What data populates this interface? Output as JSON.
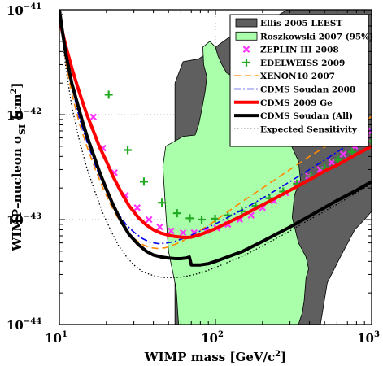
{
  "chart_data": {
    "type": "line",
    "x_scale": "log",
    "y_scale": "log",
    "xlim": [
      10,
      1000
    ],
    "ylim": [
      1e-44,
      1e-41
    ],
    "xlabel_main": "WIMP mass [GeV/c",
    "xlabel_sup": "2",
    "xlabel_end": "]",
    "ylabel_main": "WIMP–nucleon σ",
    "ylabel_sub": "SI",
    "ylabel_mid": " [cm",
    "ylabel_sup": "2",
    "ylabel_end": "]",
    "x_ticks": [
      {
        "value": 10,
        "base": "10",
        "exp": "1"
      },
      {
        "value": 100,
        "base": "10",
        "exp": "2"
      },
      {
        "value": 1000,
        "base": "10",
        "exp": "3"
      }
    ],
    "y_ticks": [
      {
        "value": 1e-44,
        "base": "10",
        "exp": "−44"
      },
      {
        "value": 1e-43,
        "base": "10",
        "exp": "−43"
      },
      {
        "value": 1e-42,
        "base": "10",
        "exp": "−42"
      },
      {
        "value": 1e-41,
        "base": "10",
        "exp": "−41"
      }
    ],
    "grid": "dotted at decades",
    "legend_position": "top-right",
    "regions": [
      {
        "name": "Ellis 2005 LEEST",
        "fill": "#5f5f5f",
        "stroke": "#000000",
        "points": [
          [
            55,
            1e-44
          ],
          [
            55,
            2e-42
          ],
          [
            62,
            3.2e-42
          ],
          [
            78,
            3.4e-42
          ],
          [
            96,
            4.2e-42
          ],
          [
            125,
            5.6e-42
          ],
          [
            165,
            6.6e-42
          ],
          [
            225,
            8.1e-42
          ],
          [
            290,
            1e-41
          ],
          [
            1000,
            1e-41
          ],
          [
            1000,
            1.2e-43
          ],
          [
            900,
            1e-43
          ],
          [
            780,
            8e-44
          ],
          [
            620,
            4.2e-44
          ],
          [
            520,
            2.5e-44
          ],
          [
            470,
            1e-44
          ]
        ]
      },
      {
        "name": "Roszkowski 2007 (95%)",
        "fill": "#aaffaa",
        "stroke": "#000000",
        "points": [
          [
            58,
            1e-44
          ],
          [
            56,
            2.2e-44
          ],
          [
            50,
            5e-44
          ],
          [
            48,
            1.2e-43
          ],
          [
            46,
            3.2e-43
          ],
          [
            48,
            5e-43
          ],
          [
            62,
            6.2e-43
          ],
          [
            74,
            6.4e-43
          ],
          [
            78,
            8e-43
          ],
          [
            82,
            1.15e-42
          ],
          [
            86,
            1.7e-42
          ],
          [
            88,
            2.3e-42
          ],
          [
            84,
            3e-42
          ],
          [
            83,
            4.4e-42
          ],
          [
            92,
            5e-42
          ],
          [
            100,
            4.4e-42
          ],
          [
            104,
            3.6e-42
          ],
          [
            110,
            3e-42
          ],
          [
            118,
            2.5e-42
          ],
          [
            130,
            2.3e-42
          ],
          [
            145,
            1.8e-42
          ],
          [
            160,
            1.4e-42
          ],
          [
            176,
            1.15e-42
          ],
          [
            196,
            9.5e-43
          ],
          [
            220,
            8.5e-43
          ],
          [
            252,
            7.8e-43
          ],
          [
            300,
            5.4e-43
          ],
          [
            340,
            3.6e-43
          ],
          [
            350,
            2.4e-43
          ],
          [
            320,
            1.7e-43
          ],
          [
            310,
            1.05e-43
          ],
          [
            340,
            6e-44
          ],
          [
            380,
            4.4e-44
          ],
          [
            395,
            3.4e-44
          ],
          [
            380,
            2.8e-44
          ],
          [
            370,
            1.7e-44
          ],
          [
            360,
            1.3e-44
          ],
          [
            340,
            1e-44
          ]
        ]
      }
    ],
    "series": [
      {
        "name": "ZEPLIN III 2008",
        "kind": "markers",
        "marker": "x",
        "color": "#ff33ff",
        "x": [
          16.5,
          19,
          22.5,
          26.5,
          31.5,
          37.5,
          44,
          52,
          62,
          73,
          87,
          102,
          120,
          143,
          169,
          200,
          237,
          281,
          333,
          395,
          468,
          555,
          658,
          780,
          925,
          1000
        ],
        "y": [
          9.5e-43,
          4.8e-43,
          2.8e-43,
          1.7e-43,
          1.3e-43,
          1e-43,
          8.5e-44,
          7.8e-44,
          7.5e-44,
          7.5e-44,
          7.8e-44,
          8.3e-44,
          9e-44,
          1e-43,
          1.1e-43,
          1.3e-43,
          1.5e-43,
          1.8e-43,
          2.2e-43,
          2.6e-43,
          3e-43,
          3.5e-43,
          4.2e-43,
          5e-43,
          6e-43,
          7e-43
        ]
      },
      {
        "name": "EDELWEISS 2009",
        "kind": "markers",
        "marker": "+",
        "color": "#22aa22",
        "x": [
          20.7,
          27.4,
          34.8,
          45.4,
          56.8,
          68.5,
          81.6,
          99.5,
          120,
          147.3,
          181,
          221.8,
          271.5,
          332.8,
          409.6,
          498.7,
          610.5,
          748.9,
          1000
        ],
        "y": [
          1.55e-42,
          4.6e-43,
          2.3e-43,
          1.45e-43,
          1.15e-43,
          1.03e-43,
          1e-43,
          1.02e-43,
          1.1e-43,
          1.2e-43,
          1.35e-43,
          1.6e-43,
          1.85e-43,
          2.2e-43,
          2.6e-43,
          3.1e-43,
          3.7e-43,
          4.4e-43,
          5.6e-43
        ]
      },
      {
        "name": "XENON10 2007",
        "kind": "line",
        "color": "#ff8800",
        "dash": "8,5",
        "width": 1.6,
        "x": [
          10,
          11,
          12,
          13.5,
          15,
          17,
          19,
          21.5,
          24,
          27,
          30,
          34,
          38,
          43,
          48,
          55,
          62,
          70,
          80,
          90,
          100,
          150,
          200,
          300,
          400,
          500,
          600,
          800,
          1000
        ],
        "y": [
          1e-41,
          3.2e-42,
          1.6e-42,
          8e-43,
          5e-43,
          3e-43,
          2e-43,
          1.35e-43,
          1e-43,
          7.8e-44,
          6.6e-44,
          5.8e-44,
          5.4e-44,
          5.3e-44,
          5.4e-44,
          5.8e-44,
          6.3e-44,
          7e-44,
          7.9e-44,
          8.8e-44,
          9.8e-44,
          1.5e-43,
          2e-43,
          3e-43,
          4e-43,
          4.9e-43,
          5.9e-43,
          7.8e-43,
          9.6e-43
        ]
      },
      {
        "name": "CDMS Soudan 2008",
        "kind": "line",
        "color": "#0000ee",
        "dash": "8,3,2,3",
        "width": 1.6,
        "x": [
          10,
          11,
          12,
          13.5,
          15,
          17,
          19,
          21.5,
          24,
          27,
          30,
          34,
          38,
          43,
          48,
          55,
          62,
          70,
          80,
          90,
          100,
          150,
          200,
          300,
          400,
          500,
          600,
          800,
          1000
        ],
        "y": [
          1e-41,
          4e-42,
          1.9e-42,
          9e-43,
          5.6e-43,
          3.3e-43,
          2.2e-43,
          1.5e-43,
          1.12e-43,
          8.8e-44,
          7.6e-44,
          6.6e-44,
          6.1e-44,
          5.9e-44,
          5.95e-44,
          6.2e-44,
          6.6e-44,
          7.1e-44,
          7.8e-44,
          8.5e-44,
          9.1e-44,
          1.25e-43,
          1.6e-43,
          2.3e-43,
          3e-43,
          3.7e-43,
          4.4e-43,
          5.8e-43,
          7.2e-43
        ]
      },
      {
        "name": "CDMS 2009 Ge",
        "kind": "line",
        "color": "#ff0000",
        "dash": "",
        "width": 4,
        "x": [
          10,
          10.5,
          11,
          12,
          13,
          14,
          15,
          16.5,
          18,
          20,
          22,
          25,
          28,
          32,
          36,
          40,
          45,
          50,
          55,
          60,
          65,
          70,
          80,
          90,
          100,
          150,
          200,
          300,
          400,
          500,
          600,
          800,
          1000
        ],
        "y": [
          8e-42,
          6e-42,
          4.5e-42,
          2.8e-42,
          1.9e-42,
          1.35e-42,
          1e-42,
          7e-43,
          5e-43,
          3.6e-43,
          2.6e-43,
          1.8e-43,
          1.35e-43,
          1.05e-43,
          8.9e-44,
          8e-44,
          7.4e-44,
          7.1e-44,
          6.9e-44,
          6.8e-44,
          6.75e-44,
          6.8e-44,
          7.2e-44,
          7.7e-44,
          8.2e-44,
          1.1e-43,
          1.38e-43,
          1.9e-43,
          2.4e-43,
          2.9e-43,
          3.3e-43,
          4.2e-43,
          5e-43
        ]
      },
      {
        "name": "CDMS Soudan (All)",
        "kind": "line",
        "color": "#000000",
        "dash": "",
        "width": 4,
        "x": [
          10,
          10.5,
          11,
          12,
          13,
          14,
          15,
          16.5,
          18,
          20,
          22,
          25,
          28,
          32,
          36,
          40,
          45,
          50,
          55,
          60,
          65,
          68,
          70,
          75,
          80,
          90,
          100,
          150,
          200,
          300,
          400,
          500,
          600,
          800,
          1000
        ],
        "y": [
          1e-41,
          6e-42,
          3.8e-42,
          2e-42,
          1.3e-42,
          8.8e-43,
          6.3e-43,
          4.2e-43,
          2.9e-43,
          1.95e-43,
          1.4e-43,
          9.5e-44,
          7.2e-44,
          5.8e-44,
          5e-44,
          4.6e-44,
          4.4e-44,
          4.3e-44,
          4.25e-44,
          4.25e-44,
          4.3e-44,
          4.4e-44,
          3.7e-44,
          3.7e-44,
          3.7e-44,
          3.8e-44,
          4e-44,
          5e-44,
          6.2e-44,
          8.5e-44,
          1.08e-43,
          1.3e-43,
          1.52e-43,
          1.9e-43,
          2.3e-43
        ]
      },
      {
        "name": "Expected Sensitivity",
        "kind": "line",
        "color": "#000000",
        "dash": "1.5,2.5",
        "width": 1.3,
        "x": [
          10,
          11,
          12,
          13.5,
          15,
          17,
          19,
          21.5,
          24,
          27,
          30,
          34,
          38,
          43,
          48,
          55,
          62,
          70,
          80,
          90,
          100,
          150,
          200,
          300,
          400,
          500,
          600,
          800,
          1000
        ],
        "y": [
          1e-41,
          2.8e-42,
          1.2e-42,
          5.5e-43,
          3.1e-43,
          1.8e-43,
          1.15e-43,
          7.7e-44,
          5.6e-44,
          4.4e-44,
          3.7e-44,
          3.2e-44,
          3e-44,
          2.85e-44,
          2.8e-44,
          2.8e-44,
          2.85e-44,
          2.95e-44,
          3.1e-44,
          3.3e-44,
          3.5e-44,
          4.5e-44,
          5.6e-44,
          7.8e-44,
          1e-43,
          1.2e-43,
          1.4e-43,
          1.8e-43,
          2.2e-43
        ]
      }
    ]
  }
}
